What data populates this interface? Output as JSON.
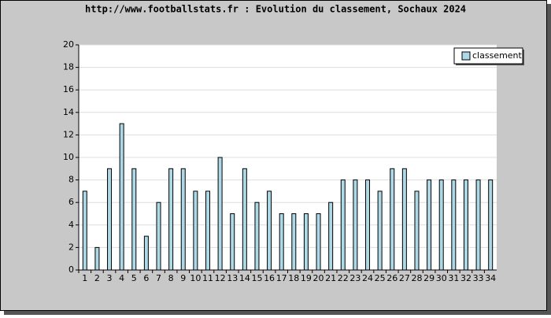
{
  "chart_data": {
    "type": "bar",
    "title": "http://www.footballstats.fr : Evolution du classement, Sochaux 2024",
    "categories": [
      "1",
      "2",
      "3",
      "4",
      "5",
      "6",
      "7",
      "8",
      "9",
      "10",
      "11",
      "12",
      "13",
      "14",
      "15",
      "16",
      "17",
      "18",
      "19",
      "20",
      "21",
      "22",
      "23",
      "24",
      "25",
      "26",
      "27",
      "28",
      "29",
      "30",
      "31",
      "32",
      "33",
      "34"
    ],
    "series": [
      {
        "name": "classement",
        "color": "#add8e6",
        "values": [
          7,
          2,
          9,
          13,
          9,
          3,
          6,
          9,
          9,
          7,
          7,
          10,
          5,
          9,
          6,
          7,
          5,
          5,
          5,
          5,
          6,
          8,
          8,
          8,
          7,
          9,
          9,
          7,
          8,
          8,
          8,
          8,
          8,
          8
        ]
      }
    ],
    "ylim": [
      0,
      20
    ],
    "yticks": [
      0,
      2,
      4,
      6,
      8,
      10,
      12,
      14,
      16,
      18,
      20
    ],
    "grid": true,
    "legend": "top-right"
  }
}
